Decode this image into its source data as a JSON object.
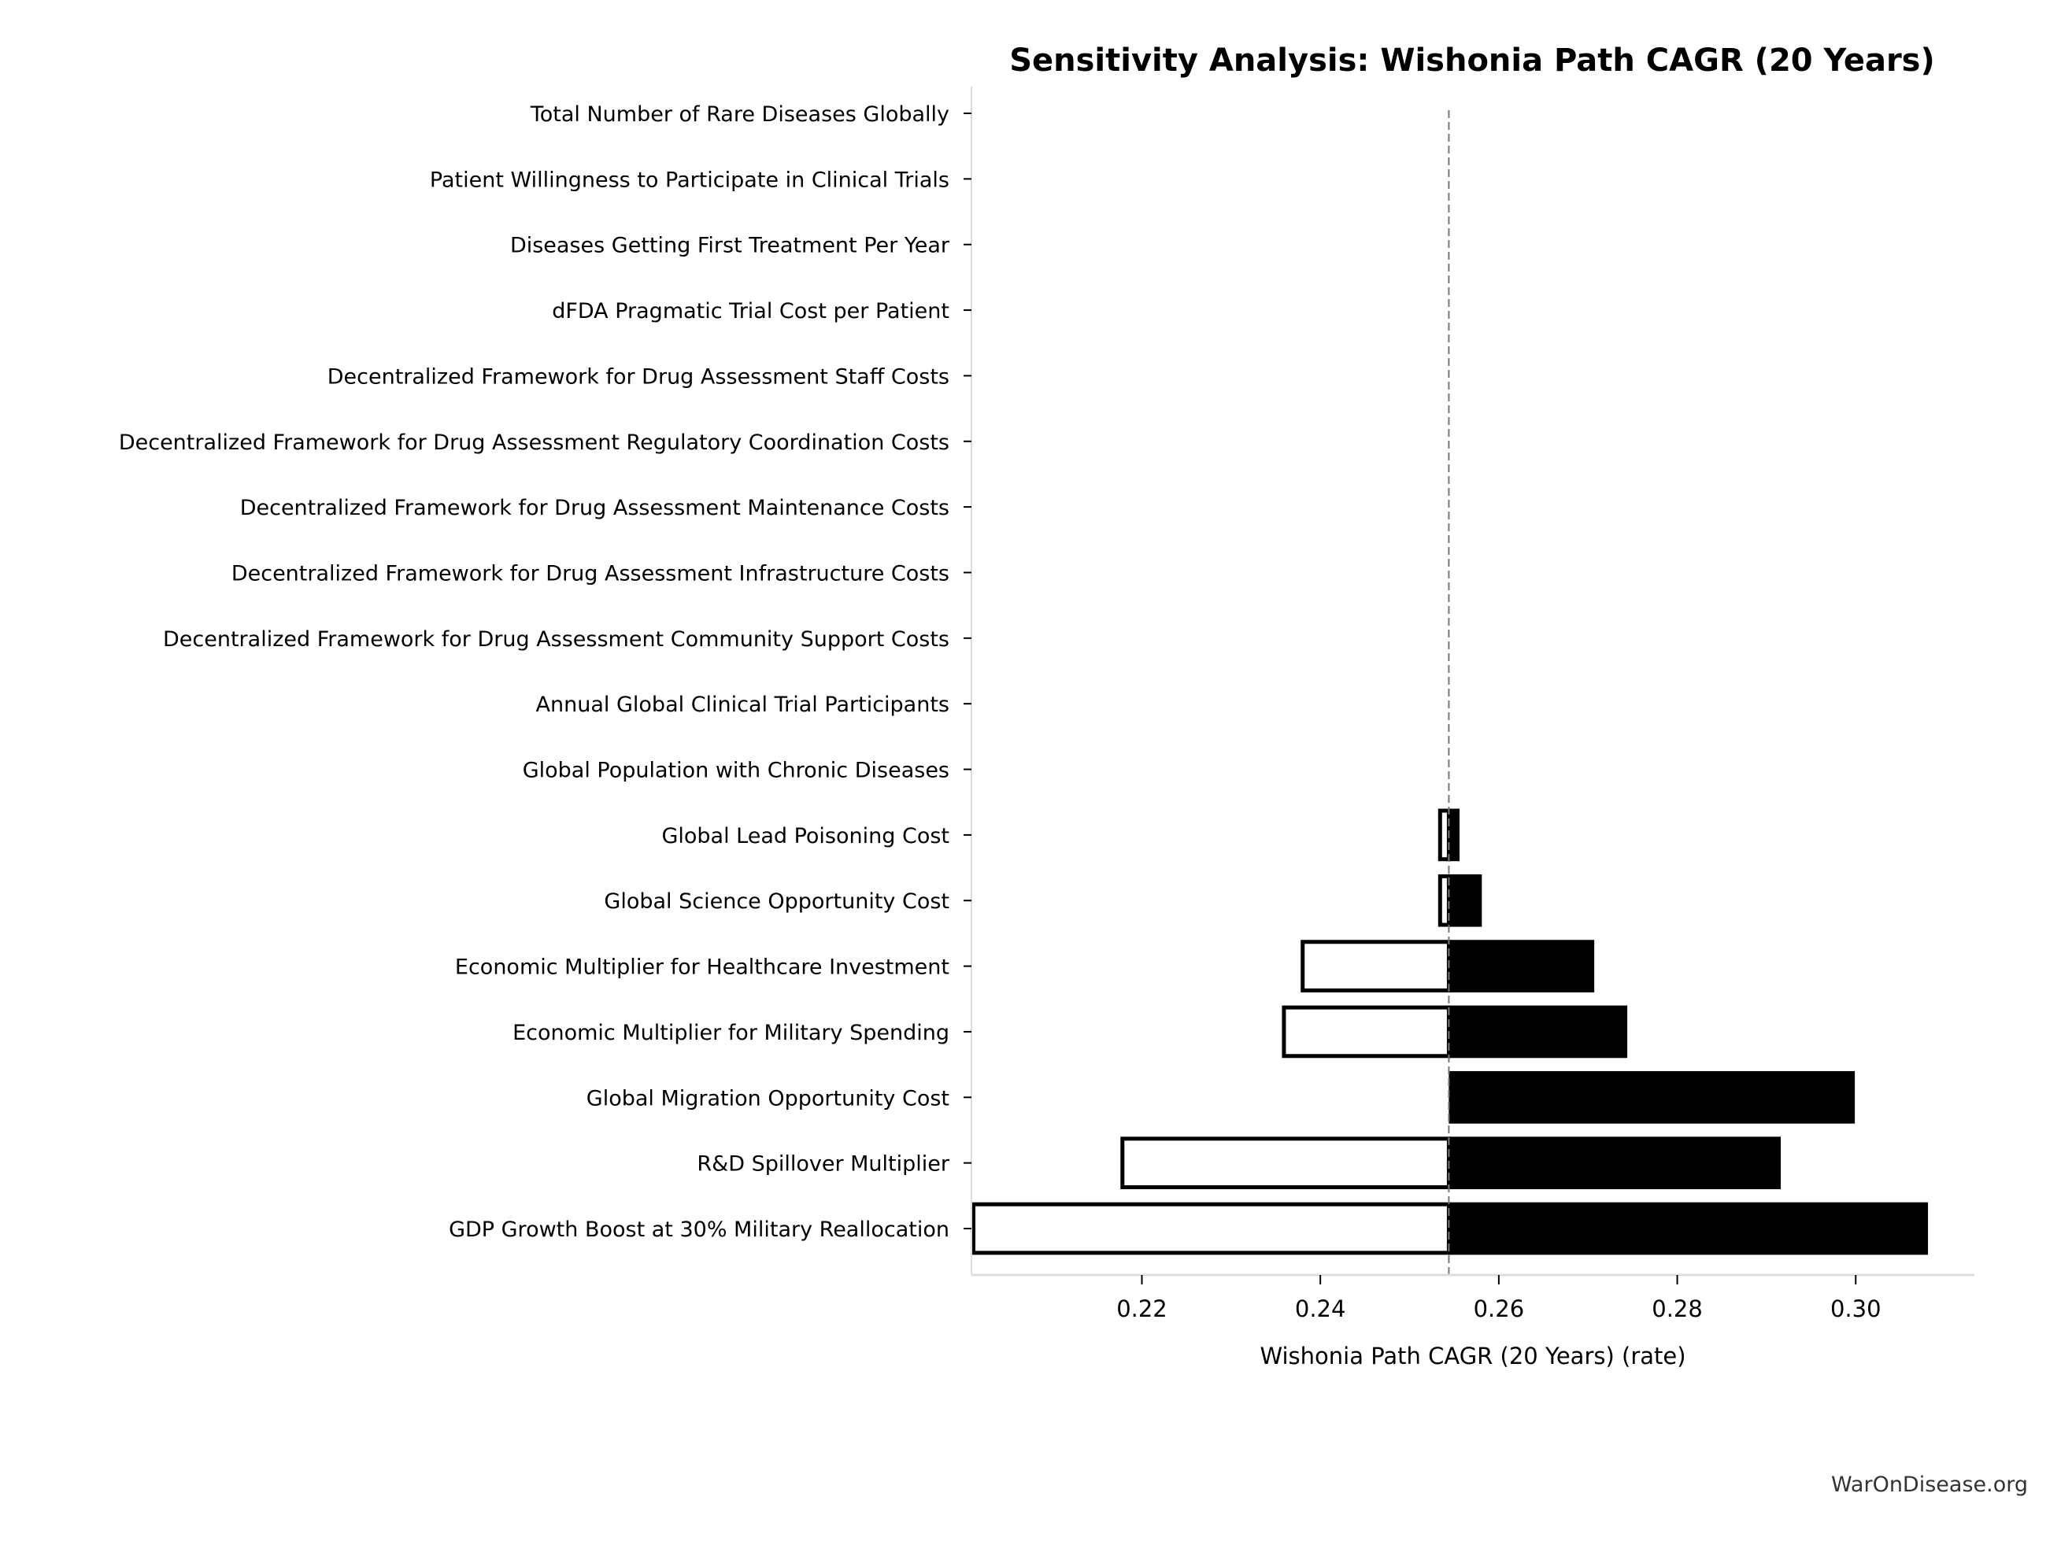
{
  "chart_data": {
    "type": "bar",
    "orientation": "horizontal",
    "subtype": "tornado",
    "title": "Sensitivity Analysis: Wishonia Path CAGR (20 Years)",
    "xlabel": "Wishonia Path CAGR (20 Years) (rate)",
    "ylabel": "",
    "xlim": [
      0.2009,
      0.3133
    ],
    "xticks": [
      0.22,
      0.24,
      0.26,
      0.28,
      0.3
    ],
    "xtick_labels": [
      "0.22",
      "0.24",
      "0.26",
      "0.28",
      "0.30"
    ],
    "baseline": 0.2544,
    "grid": false,
    "categories": [
      "Total Number of Rare Diseases Globally",
      "Patient Willingness to Participate in Clinical Trials",
      "Diseases Getting First Treatment Per Year",
      "dFDA Pragmatic Trial Cost per Patient",
      "Decentralized Framework for Drug Assessment Staff Costs",
      "Decentralized Framework for Drug Assessment Regulatory Coordination Costs",
      "Decentralized Framework for Drug Assessment Maintenance Costs",
      "Decentralized Framework for Drug Assessment Infrastructure Costs",
      "Decentralized Framework for Drug Assessment Community Support Costs",
      "Annual Global Clinical Trial Participants",
      "Global Population with Chronic Diseases",
      "Global Lead Poisoning Cost",
      "Global Science Opportunity Cost",
      "Economic Multiplier for Healthcare Investment",
      "Economic Multiplier for Military Spending",
      "Global Migration Opportunity Cost",
      "R&D Spillover Multiplier",
      "GDP Growth Boost at 30% Military Reallocation"
    ],
    "low_values": [
      0.2544,
      0.2544,
      0.2544,
      0.2544,
      0.2544,
      0.2544,
      0.2544,
      0.2544,
      0.2544,
      0.2544,
      0.2544,
      0.2532,
      0.2532,
      0.2378,
      0.2357,
      0.2544,
      0.2176,
      0.2009
    ],
    "high_values": [
      0.2544,
      0.2544,
      0.2544,
      0.2544,
      0.2544,
      0.2544,
      0.2544,
      0.2544,
      0.2544,
      0.2544,
      0.2544,
      0.2556,
      0.2581,
      0.2707,
      0.2744,
      0.2999,
      0.2916,
      0.3081
    ],
    "colors": {
      "low_fill": "#ffffff",
      "low_edge": "#000000",
      "high_fill": "#000000",
      "baseline": "#777777",
      "spine": "#dddddd"
    }
  },
  "watermark": "WarOnDisease.org"
}
